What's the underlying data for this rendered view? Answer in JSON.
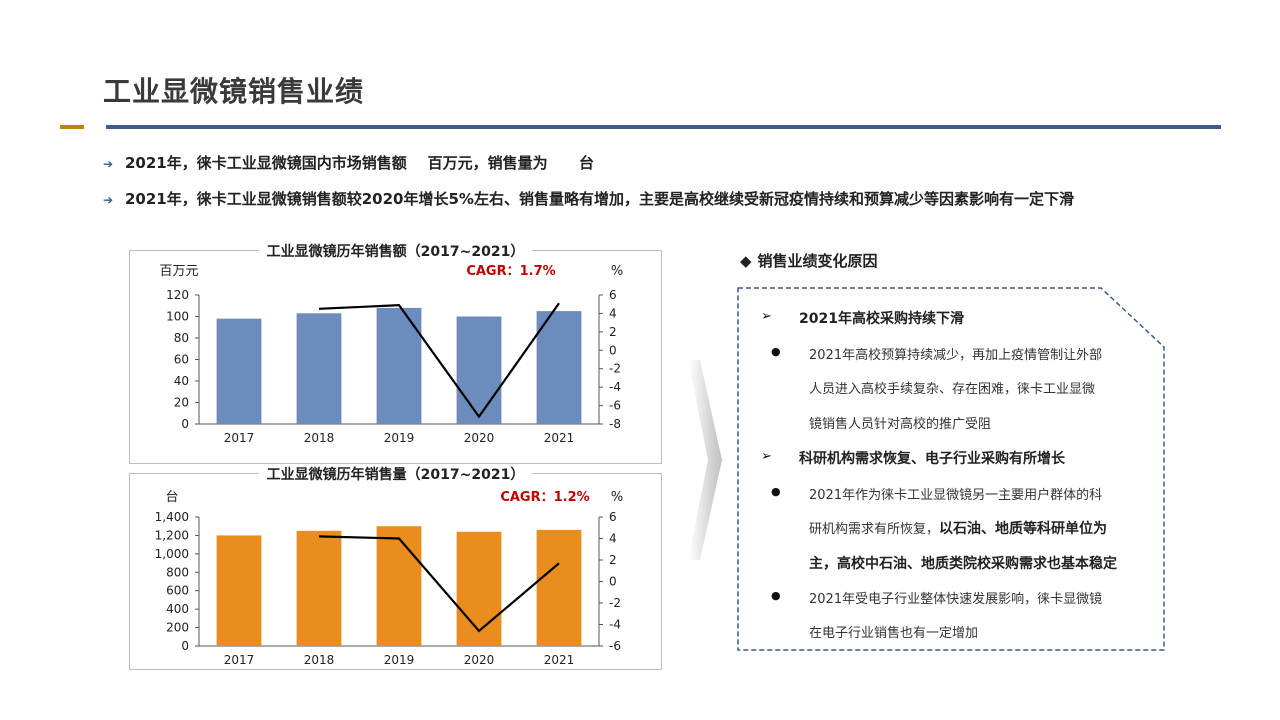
{
  "page": {
    "title": "工业显微镜销售业绩",
    "bullets": [
      "2021年，徕卡工业显微镜国内市场销售额    百万元，销售量为      台",
      "2021年，徕卡工业显微镜销售额较2020年增长5%左右、销售量略有增加，主要是高校继续受新冠疫情持续和预算减少等因素影响有一定下滑"
    ]
  },
  "colors": {
    "accent": "#b8860b",
    "rule": "#3c5a8a",
    "bar_sales": "#6b8cbc",
    "bar_volume": "#e98d1c",
    "cagr": "#c00000"
  },
  "chart_data": [
    {
      "type": "bar",
      "title": "工业显微镜历年销售额（2017~2021）",
      "ylabel": "百万元",
      "y2label": "%",
      "annotation": "CAGR：1.7%",
      "categories": [
        "2017",
        "2018",
        "2019",
        "2020",
        "2021"
      ],
      "ylim": [
        0,
        120
      ],
      "yticks": [
        "0",
        "20",
        "40",
        "60",
        "80",
        "100",
        "120"
      ],
      "y2lim": [
        -8,
        6
      ],
      "y2ticks": [
        "-8",
        "-6",
        "-4",
        "-2",
        "0",
        "2",
        "4",
        "6"
      ],
      "series": [
        {
          "type": "bar",
          "values": [
            98,
            103,
            108,
            100,
            105
          ]
        },
        {
          "type": "line",
          "x": [
            "2018",
            "2019",
            "2020",
            "2021"
          ],
          "values": [
            4.5,
            4.9,
            -7.2,
            5.1
          ]
        }
      ]
    },
    {
      "type": "bar",
      "title": "工业显微镜历年销售量（2017~2021）",
      "ylabel": "台",
      "y2label": "%",
      "annotation": "CAGR：1.2%",
      "categories": [
        "2017",
        "2018",
        "2019",
        "2020",
        "2021"
      ],
      "ylim": [
        0,
        1400
      ],
      "yticks": [
        "0",
        "200",
        "400",
        "600",
        "800",
        "1,000",
        "1,200",
        "1,400"
      ],
      "y2lim": [
        -6,
        6
      ],
      "y2ticks": [
        "-6",
        "-4",
        "-2",
        "0",
        "2",
        "4",
        "6"
      ],
      "series": [
        {
          "type": "bar",
          "values": [
            1200,
            1250,
            1300,
            1240,
            1260
          ]
        },
        {
          "type": "line",
          "x": [
            "2018",
            "2019",
            "2020",
            "2021"
          ],
          "values": [
            4.2,
            4.0,
            -4.6,
            1.7
          ]
        }
      ]
    }
  ],
  "reasons": {
    "title": "销售业绩变化原因",
    "marker_diamond": "◆",
    "marker_arrow": "➢",
    "marker_dot": "●",
    "h1": "2021年高校采购持续下滑",
    "p1": [
      "2021年高校预算持续减少，再加上疫情管制让外部",
      "人员进入高校手续复杂、存在困难，徕卡工业显微",
      "镜销售人员针对高校的推广受阻"
    ],
    "h2": "科研机构需求恢复、电子行业采购有所增长",
    "p2_line1": "2021年作为徕卡工业显微镜另一主要用户群体的科",
    "p2_line2_normal": "研机构需求有所恢复，",
    "p2_line2_bold": "以石油、地质等科研单位为",
    "p2_line3_bold": "主，高校中石油、地质类院校采购需求也基本稳定",
    "p3": [
      "2021年受电子行业整体快速发展影响，徕卡显微镜",
      "在电子行业销售也有一定增加"
    ]
  }
}
